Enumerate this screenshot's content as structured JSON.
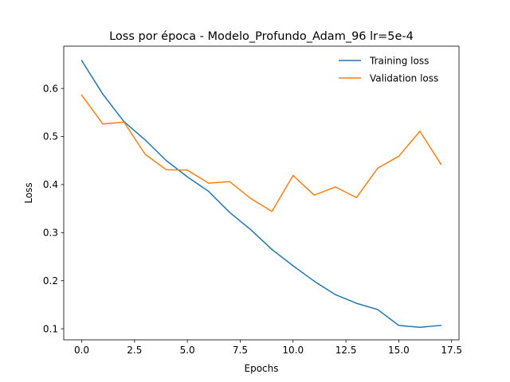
{
  "chart_data": {
    "type": "line",
    "title": "Loss por época - Modelo_Profundo_Adam_96 lr=5e-4",
    "xlabel": "Epochs",
    "ylabel": "Loss",
    "x": [
      0,
      1,
      2,
      3,
      4,
      5,
      6,
      7,
      8,
      9,
      10,
      11,
      12,
      13,
      14,
      15,
      16,
      17
    ],
    "xlim": [
      -0.85,
      17.85
    ],
    "ylim": [
      0.077,
      0.688
    ],
    "x_ticks": [
      "0.0",
      "2.5",
      "5.0",
      "7.5",
      "10.0",
      "12.5",
      "15.0",
      "17.5"
    ],
    "y_ticks": [
      "0.1",
      "0.2",
      "0.3",
      "0.4",
      "0.5",
      "0.6"
    ],
    "grid": false,
    "legend_position": "top-right",
    "series": [
      {
        "name": "Training loss",
        "color": "#1f77b4",
        "values": [
          0.658,
          0.588,
          0.531,
          0.493,
          0.45,
          0.416,
          0.386,
          0.342,
          0.306,
          0.265,
          0.231,
          0.199,
          0.171,
          0.153,
          0.14,
          0.107,
          0.103,
          0.107
        ]
      },
      {
        "name": "Validation loss",
        "color": "#ff7f0e",
        "values": [
          0.586,
          0.526,
          0.53,
          0.463,
          0.431,
          0.43,
          0.403,
          0.406,
          0.371,
          0.344,
          0.419,
          0.378,
          0.395,
          0.373,
          0.434,
          0.459,
          0.511,
          0.442
        ]
      }
    ]
  }
}
